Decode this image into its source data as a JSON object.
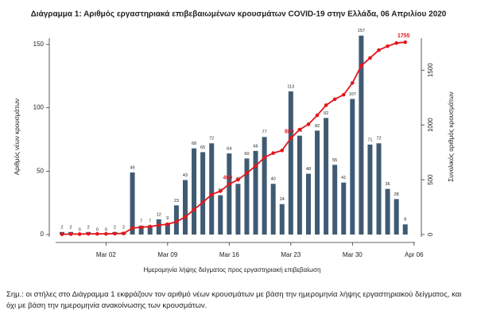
{
  "chart_data": {
    "type": "bar-line",
    "title": "Διάγραμμα 1: Αριθμός εργαστηριακά επιβεβαιωμένων κρουσμάτων COVID-19 στην Ελλάδα, 06 Απριλίου 2020",
    "xlabel": "Ημερομηνία λήψης δείγματος προς εργαστηριακή επιβεβαίωση",
    "ylabel": "Αριθμός νέων κρουσμάτων",
    "y2label": "Συνολικός αριθμός κρουσμάτων",
    "categories": [
      null,
      null,
      null,
      null,
      null,
      "Mar 02",
      null,
      null,
      null,
      null,
      null,
      null,
      "Mar 09",
      null,
      null,
      null,
      null,
      null,
      null,
      "Mar 16",
      null,
      null,
      null,
      null,
      null,
      null,
      "Mar 23",
      null,
      null,
      null,
      null,
      null,
      null,
      "Mar 30",
      null,
      null,
      null,
      null,
      null,
      null,
      "Apr 06"
    ],
    "series": [
      {
        "type": "bar",
        "color": "#3f5b73",
        "values": [
          2,
          2,
          0,
          2,
          0,
          0,
          2,
          2,
          49,
          7,
          7,
          12,
          9,
          23,
          43,
          68,
          65,
          72,
          31,
          64,
          40,
          60,
          66,
          77,
          40,
          24,
          113,
          78,
          48,
          82,
          92,
          55,
          41,
          107,
          157,
          71,
          72,
          36,
          28,
          8,
          null
        ]
      },
      {
        "type": "line",
        "axis": "y2",
        "color": "#e3161c",
        "labels_at": [
          19,
          26,
          39
        ],
        "values": [
          2,
          4,
          4,
          6,
          6,
          6,
          8,
          10,
          59,
          66,
          73,
          85,
          94,
          117,
          160,
          228,
          293,
          365,
          396,
          460,
          500,
          560,
          626,
          703,
          743,
          767,
          880,
          958,
          1006,
          1088,
          1180,
          1235,
          1276,
          1383,
          1540,
          1611,
          1683,
          1719,
          1747,
          1755,
          null
        ]
      }
    ],
    "ylim": [
      0,
      160
    ],
    "yticks": [
      0,
      50,
      100,
      150
    ],
    "y2lim": [
      0,
      1850
    ],
    "y2ticks": [
      0,
      500,
      1000,
      1500
    ]
  },
  "note": "Σημ.: οι στήλες στο Διάγραμμα 1 εκφράζουν τον αριθμό νέων κρουσμάτων με βάση την ημερομηνία λήψης εργαστηριακού δείγματος, και όχι με βάση την ημερομηνία ανακοίνωσης των κρουσμάτων."
}
